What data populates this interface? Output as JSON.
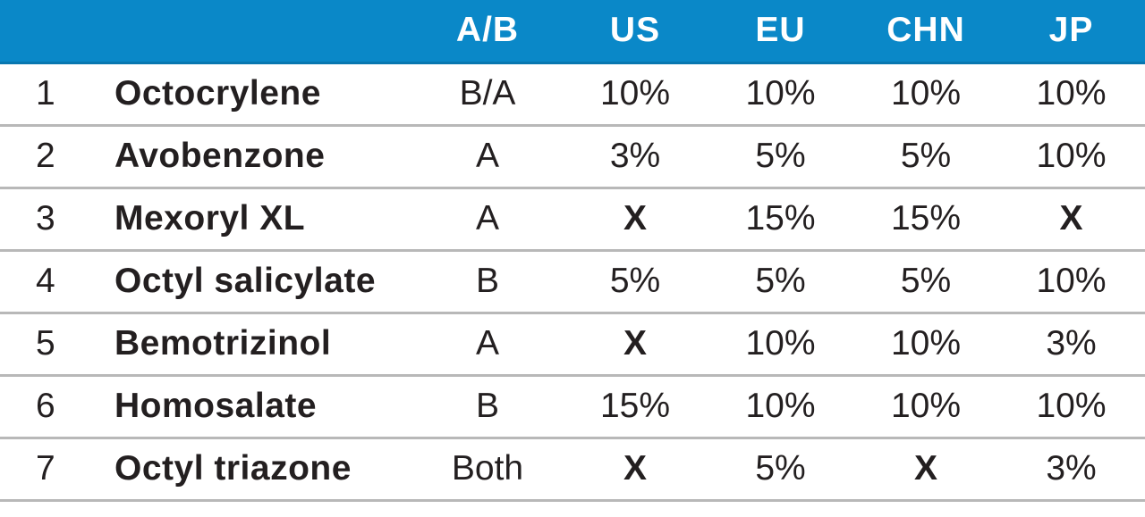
{
  "header": {
    "columns": [
      "",
      "",
      "A/B",
      "US",
      "EU",
      "CHN",
      "JP"
    ]
  },
  "rows": [
    {
      "num": "1",
      "name": "Octocrylene",
      "ab": "B/A",
      "us": "10%",
      "eu": "10%",
      "chn": "10%",
      "jp": "10%"
    },
    {
      "num": "2",
      "name": "Avobenzone",
      "ab": "A",
      "us": "3%",
      "eu": "5%",
      "chn": "5%",
      "jp": "10%"
    },
    {
      "num": "3",
      "name": "Mexoryl XL",
      "ab": "A",
      "us": "X",
      "eu": "15%",
      "chn": "15%",
      "jp": "X"
    },
    {
      "num": "4",
      "name": "Octyl salicylate",
      "ab": "B",
      "us": "5%",
      "eu": "5%",
      "chn": "5%",
      "jp": "10%"
    },
    {
      "num": "5",
      "name": "Bemotrizinol",
      "ab": "A",
      "us": "X",
      "eu": "10%",
      "chn": "10%",
      "jp": "3%"
    },
    {
      "num": "6",
      "name": "Homosalate",
      "ab": "B",
      "us": "15%",
      "eu": "10%",
      "chn": "10%",
      "jp": "10%"
    },
    {
      "num": "7",
      "name": "Octyl triazone",
      "ab": "Both",
      "us": "X",
      "eu": "5%",
      "chn": "X",
      "jp": "3%"
    }
  ],
  "colors": {
    "header_bg": "#0a88c8",
    "header_text": "#ffffff",
    "body_text": "#231f20",
    "row_divider": "#b8b8b8"
  }
}
